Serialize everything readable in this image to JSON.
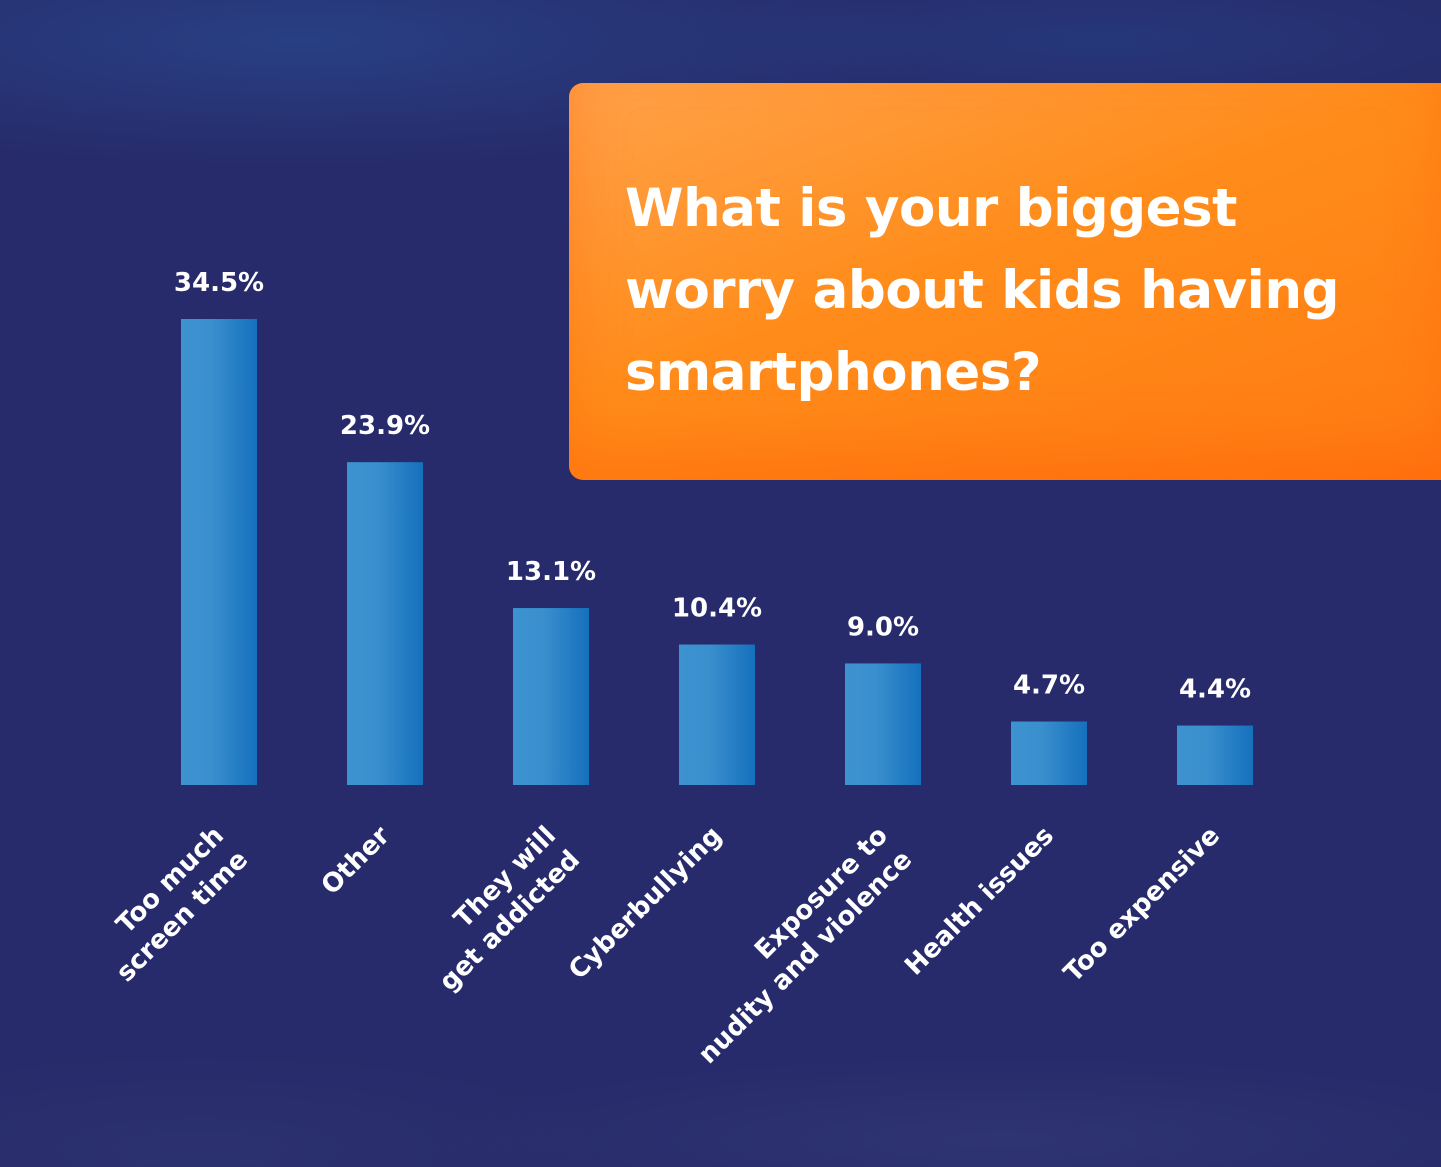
{
  "chart_data": {
    "type": "bar",
    "title": "What is your biggest worry about kids having smartphones?",
    "categories": [
      [
        "Too much",
        "screen time"
      ],
      [
        "Other"
      ],
      [
        "They will",
        "get addicted"
      ],
      [
        "Cyberbullying"
      ],
      [
        "Exposure to",
        "nudity and violence"
      ],
      [
        "Health issues"
      ],
      [
        "Too expensive"
      ]
    ],
    "values": [
      34.5,
      23.9,
      13.1,
      10.4,
      9.0,
      4.7,
      4.4
    ],
    "value_labels": [
      "34.5%",
      "23.9%",
      "13.1%",
      "10.4%",
      "9.0%",
      "4.7%",
      "4.4%"
    ],
    "ylim": [
      0,
      34.5
    ],
    "grid": false,
    "colors": {
      "background": "#272b6b",
      "bar": "#1f7ac4",
      "bar_light": "#3d93cf",
      "title_box": "#ff8c1a",
      "text": "#ffffff"
    }
  }
}
